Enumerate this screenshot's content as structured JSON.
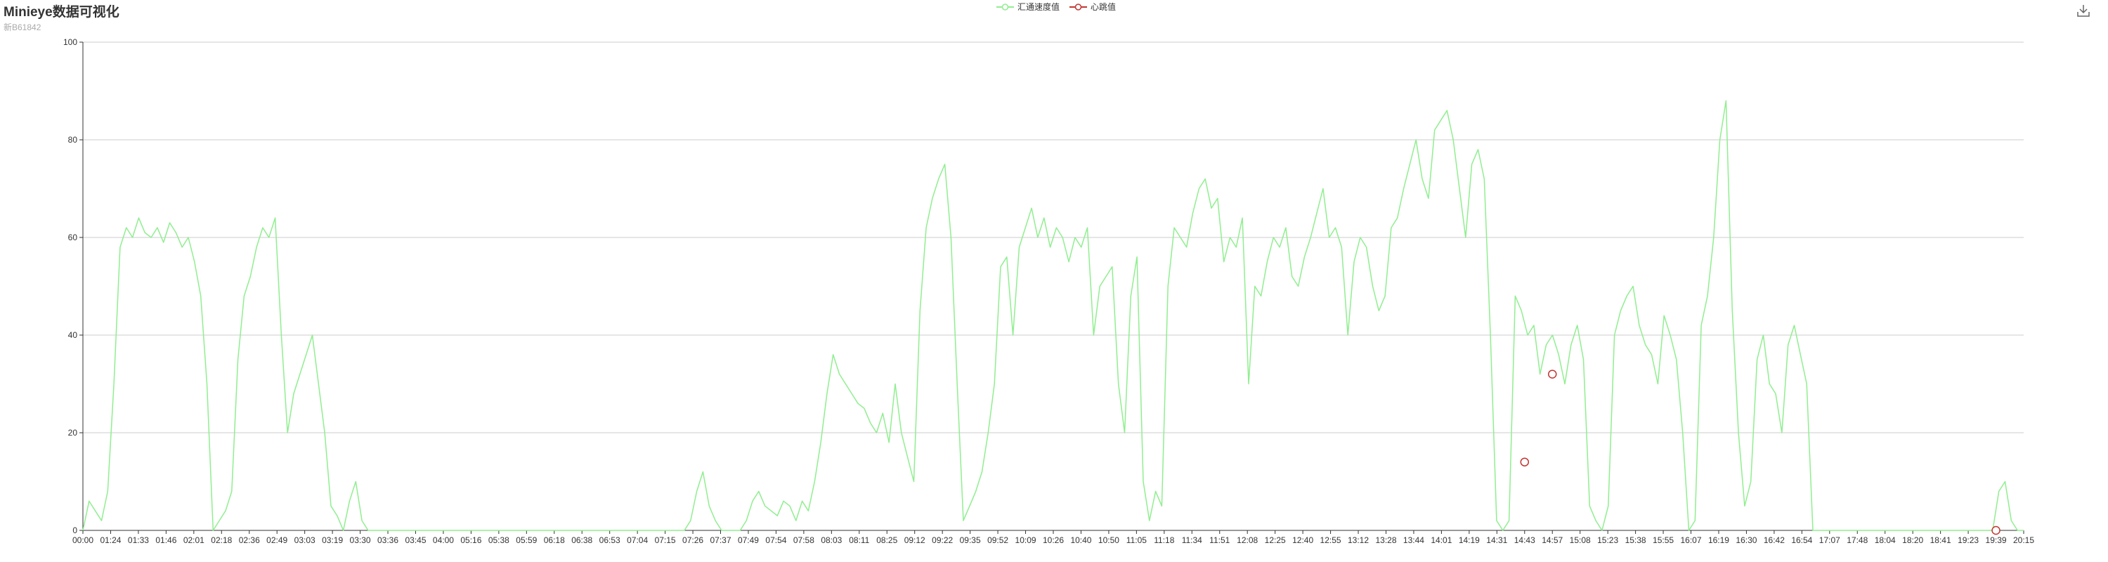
{
  "header": {
    "title": "Minieye数据可视化",
    "subtitle": "新B61842"
  },
  "toolbox": {
    "download_icon": "download-icon"
  },
  "colors": {
    "speed": "#90ee90",
    "heartbeat": "#c23531",
    "axis": "#333333",
    "grid": "#cccccc"
  },
  "chart_data": {
    "type": "line",
    "title": "Minieye数据可视化",
    "subtitle": "新B61842",
    "legend_position": "top-center",
    "grid": true,
    "ylim": [
      0,
      100
    ],
    "y_ticks": [
      0,
      20,
      40,
      60,
      80,
      100
    ],
    "x_tick_labels": [
      "00:00",
      "01:24",
      "01:33",
      "01:46",
      "02:01",
      "02:18",
      "02:36",
      "02:49",
      "03:03",
      "03:19",
      "03:30",
      "03:36",
      "03:45",
      "04:00",
      "05:16",
      "05:38",
      "05:59",
      "06:18",
      "06:38",
      "06:53",
      "07:04",
      "07:15",
      "07:26",
      "07:37",
      "07:49",
      "07:54",
      "07:58",
      "08:03",
      "08:11",
      "08:25",
      "09:12",
      "09:22",
      "09:35",
      "09:52",
      "10:09",
      "10:26",
      "10:40",
      "10:50",
      "11:05",
      "11:18",
      "11:34",
      "11:51",
      "12:08",
      "12:25",
      "12:40",
      "12:55",
      "13:12",
      "13:28",
      "13:44",
      "14:01",
      "14:19",
      "14:31",
      "14:43",
      "14:57",
      "15:08",
      "15:23",
      "15:38",
      "15:55",
      "16:07",
      "16:19",
      "16:30",
      "16:42",
      "16:54",
      "17:07",
      "17:48",
      "18:04",
      "18:20",
      "18:41",
      "19:23",
      "19:39",
      "20:15"
    ],
    "series": [
      {
        "name": "汇通速度值",
        "values": [
          0,
          6,
          4,
          2,
          8,
          30,
          58,
          62,
          60,
          64,
          61,
          60,
          62,
          59,
          63,
          61,
          58,
          60,
          55,
          48,
          30,
          0,
          2,
          4,
          8,
          35,
          48,
          52,
          58,
          62,
          60,
          64,
          40,
          20,
          28,
          32,
          36,
          40,
          30,
          20,
          5,
          3,
          0,
          6,
          10,
          2,
          0,
          0,
          0,
          0,
          0,
          0,
          0,
          0,
          0,
          0,
          0,
          0,
          0,
          0,
          0,
          0,
          0,
          0,
          0,
          0,
          0,
          0,
          0,
          0,
          0,
          0,
          0,
          0,
          0,
          0,
          0,
          0,
          0,
          0,
          0,
          0,
          0,
          0,
          0,
          0,
          0,
          0,
          0,
          0,
          0,
          0,
          0,
          0,
          0,
          0,
          0,
          0,
          2,
          8,
          12,
          5,
          2,
          0,
          0,
          0,
          0,
          2,
          6,
          8,
          5,
          4,
          3,
          6,
          5,
          2,
          6,
          4,
          10,
          18,
          28,
          36,
          32,
          30,
          28,
          26,
          25,
          22,
          20,
          24,
          18,
          30,
          20,
          15,
          10,
          45,
          62,
          68,
          72,
          75,
          60,
          30,
          2,
          5,
          8,
          12,
          20,
          30,
          54,
          56,
          40,
          58,
          62,
          66,
          60,
          64,
          58,
          62,
          60,
          55,
          60,
          58,
          62,
          40,
          50,
          52,
          54,
          30,
          20,
          48,
          56,
          10,
          2,
          8,
          5,
          50,
          62,
          60,
          58,
          65,
          70,
          72,
          66,
          68,
          55,
          60,
          58,
          64,
          30,
          50,
          48,
          55,
          60,
          58,
          62,
          52,
          50,
          56,
          60,
          65,
          70,
          60,
          62,
          58,
          40,
          55,
          60,
          58,
          50,
          45,
          48,
          62,
          64,
          70,
          75,
          80,
          72,
          68,
          82,
          84,
          86,
          80,
          70,
          60,
          75,
          78,
          72,
          40,
          2,
          0,
          2,
          48,
          45,
          40,
          42,
          32,
          38,
          40,
          36,
          30,
          38,
          42,
          35,
          5,
          2,
          0,
          5,
          40,
          45,
          48,
          50,
          42,
          38,
          36,
          30,
          44,
          40,
          35,
          20,
          0,
          2,
          42,
          48,
          60,
          80,
          88,
          45,
          20,
          5,
          10,
          35,
          40,
          30,
          28,
          20,
          38,
          42,
          36,
          30,
          0,
          0,
          0,
          0,
          0,
          0,
          0,
          0,
          0,
          0,
          0,
          0,
          0,
          0,
          0,
          0,
          0,
          0,
          0,
          0,
          0,
          0,
          0,
          0,
          0,
          0,
          0,
          0,
          0,
          0,
          8,
          10,
          2,
          0,
          0
        ]
      },
      {
        "name": "心跳值",
        "points": [
          {
            "x": "14:43",
            "y": 14
          },
          {
            "x": "14:57",
            "y": 32
          },
          {
            "x": "19:39",
            "y": 0
          }
        ]
      }
    ]
  }
}
